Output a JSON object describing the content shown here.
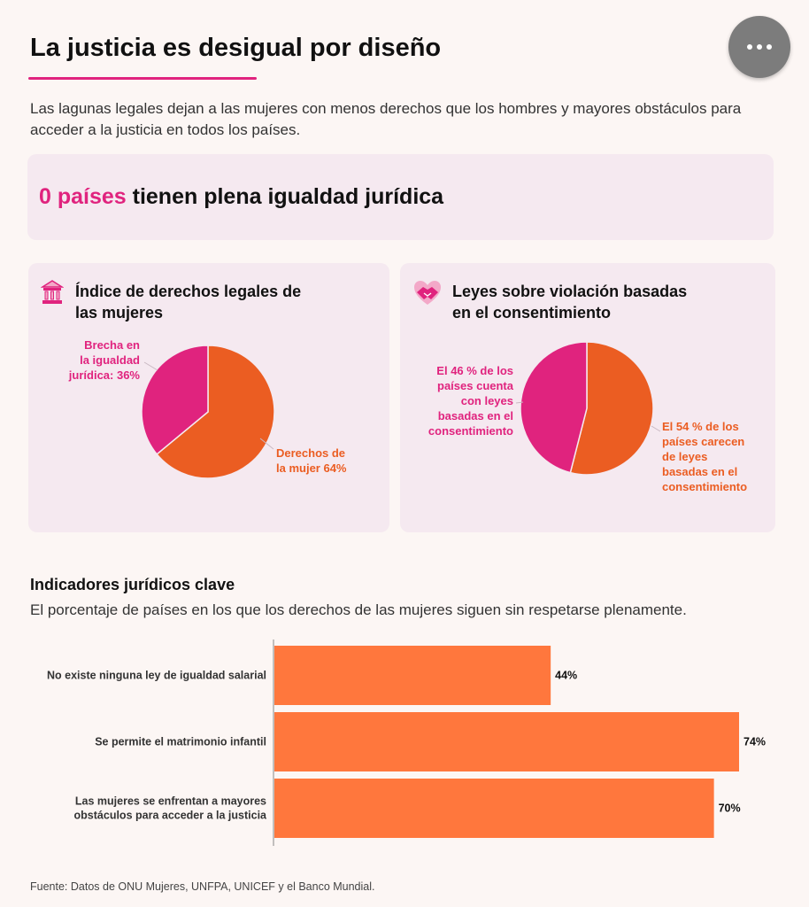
{
  "header": {
    "title": "La justicia es desigual por diseño",
    "subtitle": "Las lagunas legales dejan a las mujeres con menos derechos que los hombres y mayores obstáculos para acceder a la justicia en todos los países.",
    "more_button_icon": "more-horizontal-icon"
  },
  "highlight": {
    "number": "0 países",
    "text": " tienen plena igualdad jurídica"
  },
  "colors": {
    "pink": "#e0237e",
    "orange": "#eb5d22",
    "bar": "#ff773d",
    "panel": "#f5e9f0"
  },
  "left_card": {
    "icon": "courthouse-icon",
    "title_line1": "Índice de derechos legales de",
    "title_line2": "las mujeres"
  },
  "right_card": {
    "icon": "handshake-heart-icon",
    "title_line1": "Leyes sobre violación basadas",
    "title_line2": "en el consentimiento"
  },
  "bar_section": {
    "title": "Indicadores jurídicos clave",
    "subtitle": "El porcentaje de países en los que los derechos de las mujeres siguen sin respetarse plenamente."
  },
  "source": "Fuente: Datos de ONU Mujeres, UNFPA, UNICEF y el Banco Mundial.",
  "chart_data": [
    {
      "type": "pie",
      "title": "Índice de derechos legales de las mujeres",
      "slices": [
        {
          "name": "Derechos de la mujer",
          "value": 64,
          "label_lines": [
            "Derechos de",
            "la mujer 64%"
          ]
        },
        {
          "name": "Brecha en la igualdad jurídica",
          "value": 36,
          "label_lines": [
            "Brecha en",
            "la igualdad",
            "jurídica: 36%"
          ]
        }
      ]
    },
    {
      "type": "pie",
      "title": "Leyes sobre violación basadas en el consentimiento",
      "slices": [
        {
          "name": "Países sin leyes basadas en el consentimiento",
          "value": 54,
          "label_lines": [
            "El 54 % de los",
            "países carecen",
            "de leyes",
            "basadas en el",
            "consentimiento"
          ]
        },
        {
          "name": "Países con leyes basadas en el consentimiento",
          "value": 46,
          "label_lines": [
            "El 46 % de los",
            "países cuenta",
            "con leyes",
            "basadas en el",
            "consentimiento"
          ]
        }
      ]
    },
    {
      "type": "bar",
      "orientation": "horizontal",
      "title": "Indicadores jurídicos clave",
      "xlim": [
        0,
        75
      ],
      "categories": [
        [
          "No existe ninguna ley de igualdad salarial"
        ],
        [
          "Se permite el matrimonio infantil"
        ],
        [
          "Las mujeres se enfrentan a mayores",
          "obstáculos para acceder a la justicia"
        ]
      ],
      "values": [
        44,
        74,
        70
      ],
      "value_labels": [
        "44%",
        "74%",
        "70%"
      ]
    }
  ]
}
